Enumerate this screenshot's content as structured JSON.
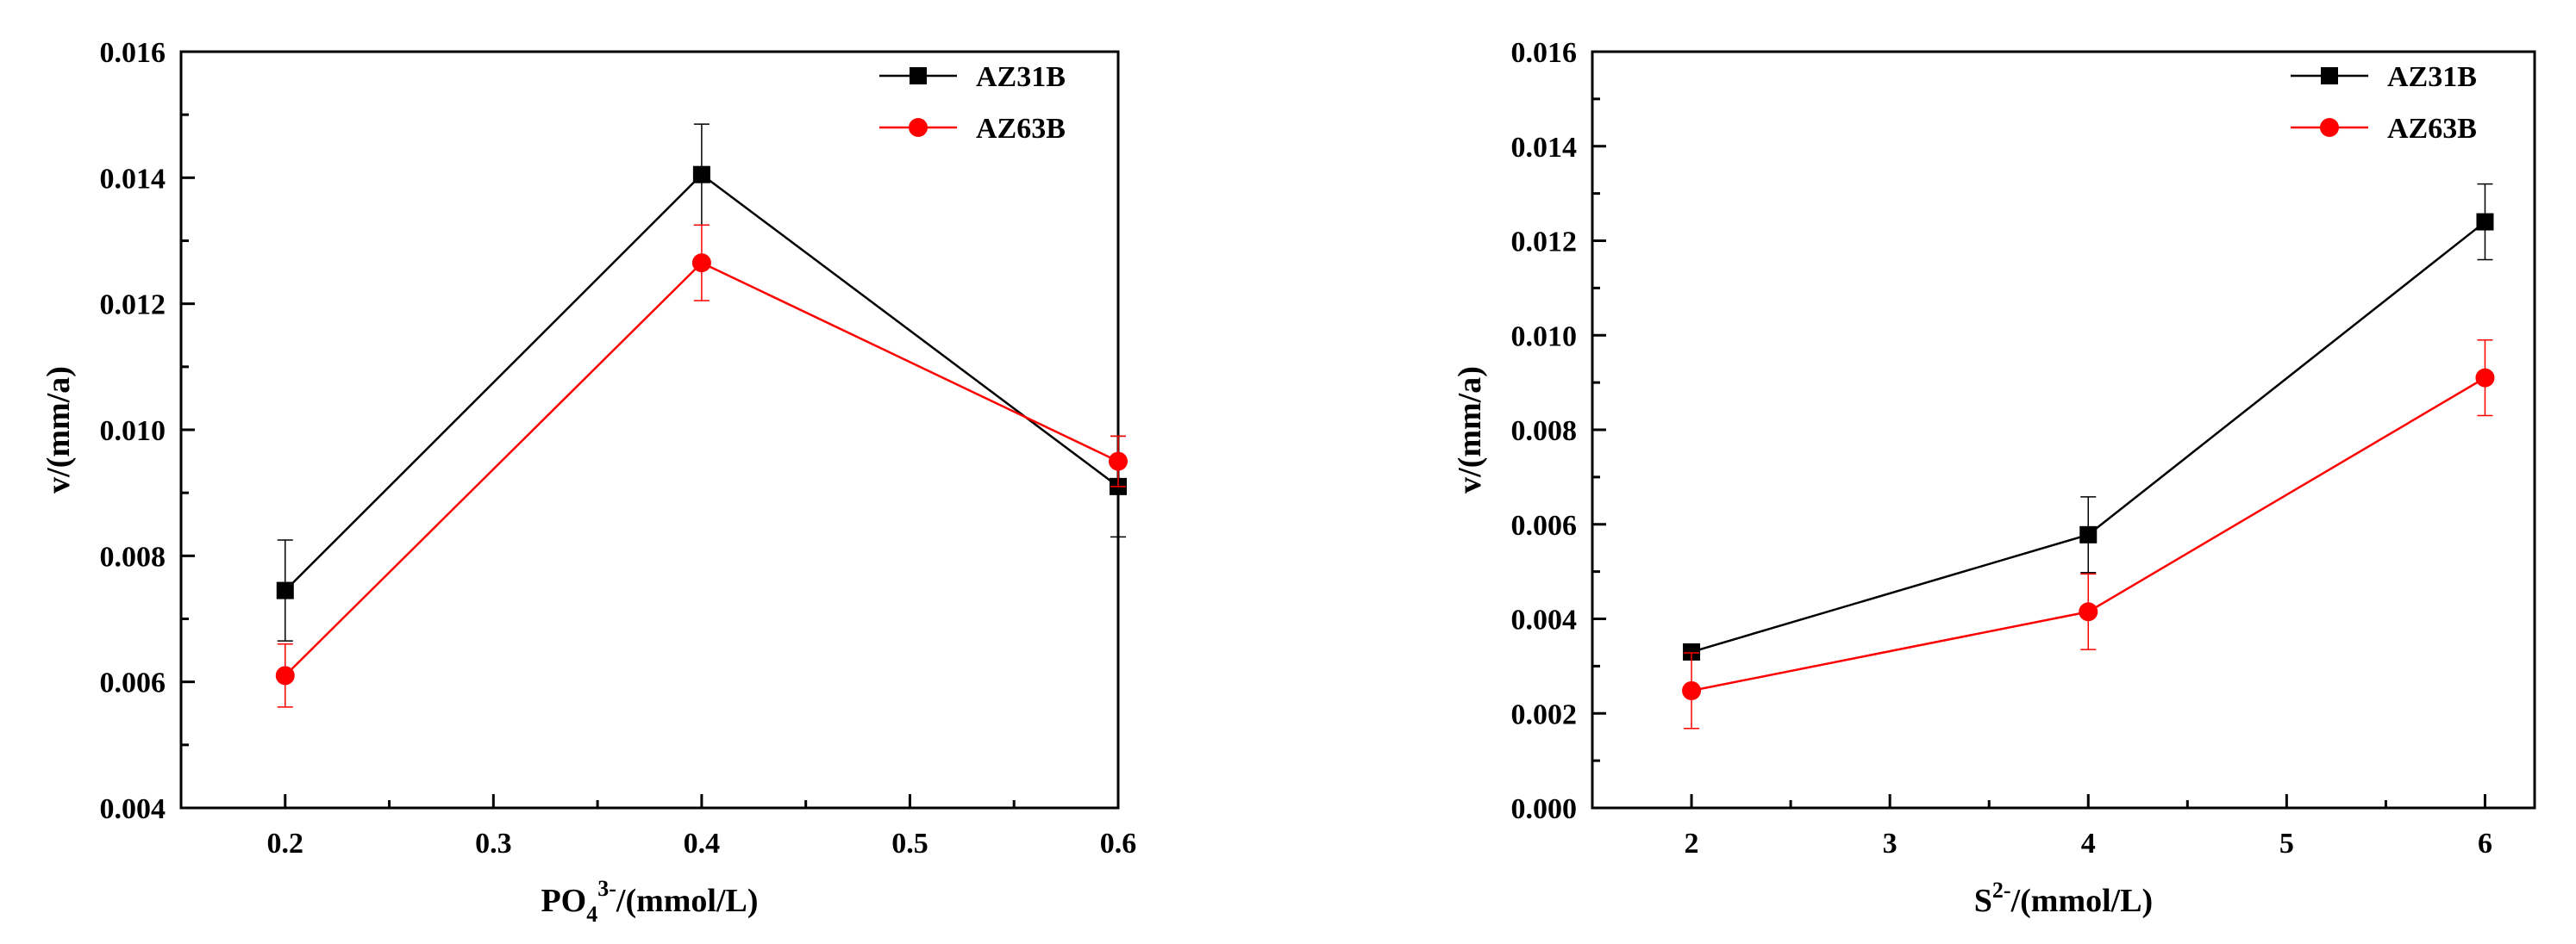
{
  "chart_data": [
    {
      "type": "line",
      "title": "",
      "xlabel": "PO43-/(mmol/L)",
      "xlabel_parts": {
        "base": "PO",
        "sub": "4",
        "sup": "3-",
        "rest": "/(mmol/L)"
      },
      "ylabel": "v/(mm/a)",
      "xlim": [
        0.15,
        0.6
      ],
      "ylim": [
        0.004,
        0.016
      ],
      "x_ticks": [
        0.2,
        0.3,
        0.4,
        0.5,
        0.6
      ],
      "x_tick_labels": [
        "0.2",
        "0.3",
        "0.4",
        "0.5",
        "0.6"
      ],
      "y_ticks": [
        0.004,
        0.006,
        0.008,
        0.01,
        0.012,
        0.014,
        0.016
      ],
      "y_tick_labels": [
        "0.004",
        "0.006",
        "0.008",
        "0.010",
        "0.012",
        "0.014",
        "0.016"
      ],
      "x": [
        0.2,
        0.4,
        0.6
      ],
      "legend_position": "top-right",
      "grid": false,
      "series": [
        {
          "name": "AZ31B",
          "color": "#000000",
          "marker": "square",
          "values": [
            0.00745,
            0.01405,
            0.0091
          ],
          "errors": [
            0.0008,
            0.0008,
            0.0008
          ]
        },
        {
          "name": "AZ63B",
          "color": "#ff0000",
          "marker": "circle",
          "values": [
            0.0061,
            0.01265,
            0.0095
          ],
          "errors": [
            0.0005,
            0.0006,
            0.0004
          ]
        }
      ]
    },
    {
      "type": "line",
      "title": "",
      "xlabel": "S2-/(mmol/L)",
      "xlabel_parts": {
        "base": "S",
        "sub": "",
        "sup": "2-",
        "rest": "/(mmol/L)"
      },
      "ylabel": "v/(mm/a)",
      "xlim": [
        1.5,
        6.25
      ],
      "ylim": [
        0.0,
        0.016
      ],
      "x_ticks": [
        2,
        3,
        4,
        5,
        6
      ],
      "x_tick_labels": [
        "2",
        "3",
        "4",
        "5",
        "6"
      ],
      "y_ticks": [
        0.0,
        0.002,
        0.004,
        0.006,
        0.008,
        0.01,
        0.012,
        0.014,
        0.016
      ],
      "y_tick_labels": [
        "0.000",
        "0.002",
        "0.004",
        "0.006",
        "0.008",
        "0.010",
        "0.012",
        "0.014",
        "0.016"
      ],
      "x": [
        2,
        4,
        6
      ],
      "legend_position": "top-right",
      "grid": false,
      "series": [
        {
          "name": "AZ31B",
          "color": "#000000",
          "marker": "square",
          "values": [
            0.0033,
            0.00578,
            0.0124
          ],
          "errors": [
            0.0,
            0.0008,
            0.0008
          ]
        },
        {
          "name": "AZ63B",
          "color": "#ff0000",
          "marker": "circle",
          "values": [
            0.00248,
            0.00415,
            0.0091
          ],
          "errors": [
            0.0008,
            0.0008,
            0.0008
          ]
        }
      ]
    }
  ]
}
